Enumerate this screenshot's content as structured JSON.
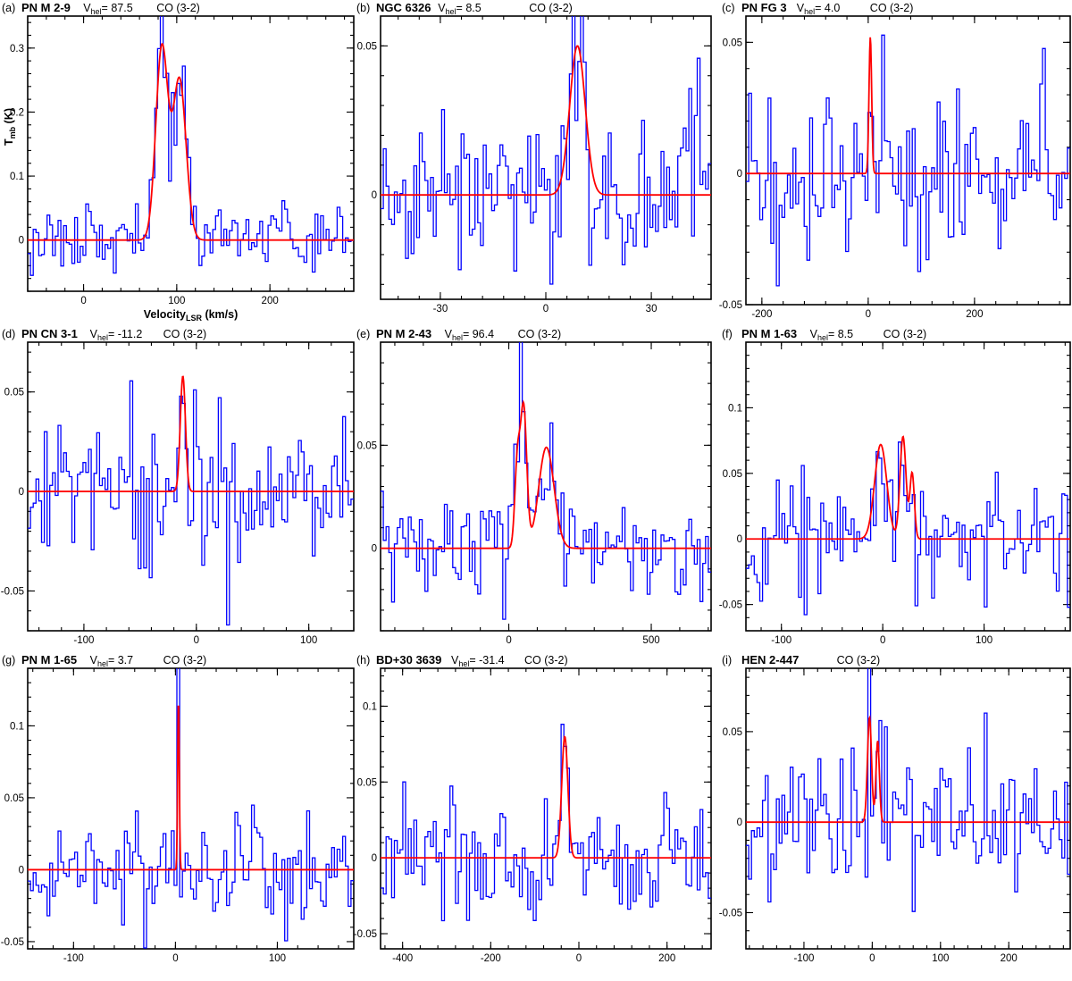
{
  "chart_data": [
    {
      "type": "line",
      "panel_label": "(a)",
      "source": "PN M 2-9",
      "vhel_text": "87.5",
      "line": "CO (3-2)",
      "xlabel": "Velocity",
      "xlabel_sub": "LSR",
      "xlabel_unit": " (km/s)",
      "ylabel": "T",
      "ylabel_sub": "mb",
      "ylabel_unit": " (K)",
      "xlim": [
        -60,
        290
      ],
      "ylim": [
        -0.08,
        0.35
      ],
      "xticks": [
        0,
        100,
        200
      ],
      "yticks": [
        0,
        0.1,
        0.2,
        0.3
      ],
      "ytick_labels": [
        "0",
        "0.1",
        "0.2",
        "0.3"
      ],
      "rms": 0.025,
      "seed": 11,
      "series": [
        {
          "kind": "spectrum"
        },
        {
          "kind": "fit",
          "components": [
            {
              "amp": 0.3,
              "center": 84,
              "sigma": 6.5
            },
            {
              "amp": 0.25,
              "center": 103,
              "sigma": 7
            }
          ]
        }
      ]
    },
    {
      "type": "line",
      "panel_label": "(b)",
      "source": "NGC 6326",
      "vhel_text": "8.5",
      "line": "CO (3-2)",
      "xlim": [
        -47,
        47
      ],
      "ylim": [
        -0.035,
        0.06
      ],
      "xticks": [
        -30,
        0,
        30
      ],
      "yticks": [
        0,
        0.05
      ],
      "ytick_labels": [
        "0",
        "0.05"
      ],
      "rms": 0.014,
      "seed": 23,
      "series": [
        {
          "kind": "spectrum"
        },
        {
          "kind": "fit",
          "components": [
            {
              "amp": 0.05,
              "center": 9,
              "sigma": 2.2
            }
          ]
        }
      ]
    },
    {
      "type": "line",
      "panel_label": "(c)",
      "source": "PN FG 3",
      "vhel_text": "4.0",
      "line": "CO (3-2)",
      "xlim": [
        -230,
        380
      ],
      "ylim": [
        -0.05,
        0.06
      ],
      "xticks": [
        -200,
        0,
        200
      ],
      "yticks": [
        -0.05,
        0,
        0.05
      ],
      "ytick_labels": [
        "-0.05",
        "0",
        "0.05"
      ],
      "rms": 0.017,
      "seed": 37,
      "series": [
        {
          "kind": "spectrum"
        },
        {
          "kind": "fit",
          "components": [
            {
              "amp": 0.052,
              "center": 4,
              "sigma": 2.5
            }
          ]
        }
      ]
    },
    {
      "type": "line",
      "panel_label": "(d)",
      "source": "PN CN 3-1",
      "vhel_text": "-11.2",
      "line": "CO (3-2)",
      "xlim": [
        -150,
        140
      ],
      "ylim": [
        -0.07,
        0.075
      ],
      "xticks": [
        -100,
        0,
        100
      ],
      "yticks": [
        -0.05,
        0,
        0.05
      ],
      "ytick_labels": [
        "-0.05",
        "0",
        "0.05"
      ],
      "rms": 0.02,
      "seed": 41,
      "series": [
        {
          "kind": "spectrum"
        },
        {
          "kind": "fit",
          "components": [
            {
              "amp": 0.058,
              "center": -12,
              "sigma": 2.3
            }
          ]
        }
      ]
    },
    {
      "type": "line",
      "panel_label": "(e)",
      "source": "PN M 2-43",
      "vhel_text": "96.4",
      "line": "CO (3-2)",
      "xlim": [
        -450,
        710
      ],
      "ylim": [
        -0.04,
        0.1
      ],
      "xticks": [
        0,
        500
      ],
      "yticks": [
        0,
        0.05
      ],
      "ytick_labels": [
        "0",
        "0.05"
      ],
      "rms": 0.012,
      "seed": 53,
      "series": [
        {
          "kind": "spectrum"
        },
        {
          "kind": "fit",
          "components": [
            {
              "amp": 0.04,
              "center": 30,
              "sigma": 9
            },
            {
              "amp": 0.068,
              "center": 52,
              "sigma": 11
            },
            {
              "amp": 0.049,
              "center": 132,
              "sigma": 27
            }
          ]
        }
      ]
    },
    {
      "type": "line",
      "panel_label": "(f)",
      "source": "PN M 1-63",
      "vhel_text": "8.5",
      "line": "CO (3-2)",
      "xlim": [
        -135,
        185
      ],
      "ylim": [
        -0.07,
        0.15
      ],
      "xticks": [
        -100,
        0,
        100
      ],
      "yticks": [
        -0.05,
        0,
        0.05,
        0.1
      ],
      "ytick_labels": [
        "-0.05",
        "0",
        "0.05",
        "0.1"
      ],
      "rms": 0.022,
      "seed": 67,
      "series": [
        {
          "kind": "spectrum"
        },
        {
          "kind": "fit",
          "components": [
            {
              "amp": 0.072,
              "center": -2,
              "sigma": 6
            },
            {
              "amp": 0.078,
              "center": 20,
              "sigma": 3
            },
            {
              "amp": 0.05,
              "center": 29,
              "sigma": 2.2
            }
          ]
        }
      ]
    },
    {
      "type": "line",
      "panel_label": "(g)",
      "source": "PN M 1-65",
      "vhel_text": "3.7",
      "line": "CO (3-2)",
      "xlim": [
        -145,
        175
      ],
      "ylim": [
        -0.055,
        0.14
      ],
      "xticks": [
        -100,
        0,
        100
      ],
      "yticks": [
        -0.05,
        0,
        0.05,
        0.1
      ],
      "ytick_labels": [
        "-0.05",
        "0",
        "0.05",
        "0.1"
      ],
      "rms": 0.018,
      "seed": 71,
      "series": [
        {
          "kind": "spectrum"
        },
        {
          "kind": "fit",
          "components": [
            {
              "amp": 0.12,
              "center": 3,
              "sigma": 0.8
            }
          ]
        }
      ]
    },
    {
      "type": "line",
      "panel_label": "(h)",
      "source": "BD+30 3639",
      "vhel_text": "-31.4",
      "line": "CO (3-2)",
      "xlim": [
        -450,
        300
      ],
      "ylim": [
        -0.06,
        0.125
      ],
      "xticks": [
        -400,
        -200,
        0,
        200
      ],
      "yticks": [
        -0.05,
        0,
        0.05,
        0.1
      ],
      "ytick_labels": [
        "-0.05",
        "0",
        "0.05",
        "0.1"
      ],
      "rms": 0.022,
      "seed": 83,
      "series": [
        {
          "kind": "spectrum"
        },
        {
          "kind": "fit",
          "components": [
            {
              "amp": 0.08,
              "center": -32,
              "sigma": 7
            }
          ]
        }
      ]
    },
    {
      "type": "line",
      "panel_label": "(i)",
      "source": "HEN 2-447",
      "vhel_text": "",
      "line": "CO (3-2)",
      "xlim": [
        -185,
        290
      ],
      "ylim": [
        -0.07,
        0.085
      ],
      "xticks": [
        -100,
        0,
        100,
        200
      ],
      "yticks": [
        -0.05,
        0,
        0.05
      ],
      "ytick_labels": [
        "-0.05",
        "0",
        "0.05"
      ],
      "rms": 0.022,
      "seed": 97,
      "series": [
        {
          "kind": "spectrum"
        },
        {
          "kind": "fit",
          "components": [
            {
              "amp": 0.058,
              "center": -4,
              "sigma": 3
            },
            {
              "amp": 0.045,
              "center": 8,
              "sigma": 2.5
            }
          ]
        }
      ]
    }
  ],
  "labels": {
    "vhel_prefix": "V",
    "vhel_sub": "hel",
    "vhel_eq": "= "
  },
  "colors": {
    "spectrum": "#0000ff",
    "fit": "#ff0000",
    "axes": "#000000"
  }
}
